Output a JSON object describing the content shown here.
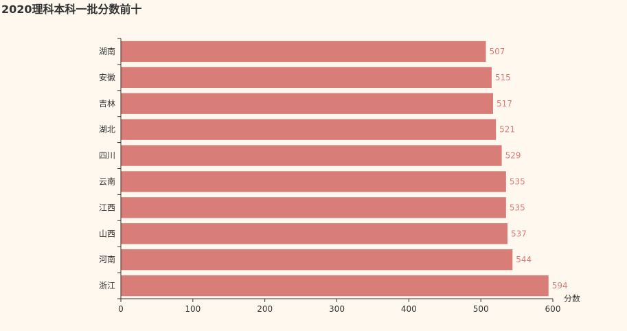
{
  "chart_data": {
    "type": "bar",
    "orientation": "horizontal",
    "title": "2020理科本科一批分数前十",
    "xlabel": "分数",
    "ylabel": "",
    "categories": [
      "湖南",
      "安徽",
      "吉林",
      "湖北",
      "四川",
      "云南",
      "江西",
      "山西",
      "河南",
      "浙江"
    ],
    "values": [
      507,
      515,
      517,
      521,
      529,
      535,
      535,
      537,
      544,
      594
    ],
    "xlim": [
      0,
      600
    ],
    "xticks": [
      0,
      100,
      200,
      300,
      400,
      500,
      600
    ],
    "grid": false,
    "bar_color": "#d97d79",
    "label_color": "#e07a78"
  }
}
